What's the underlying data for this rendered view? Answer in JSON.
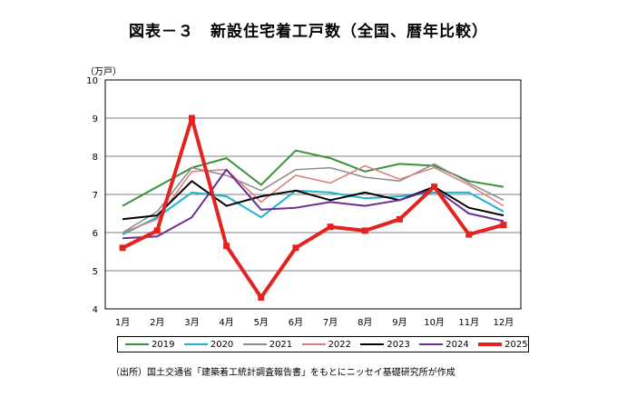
{
  "chart_data": {
    "type": "line",
    "title": "図表－３　新設住宅着工戸数（全国、暦年比較）",
    "ylabel": "（万戸）",
    "xlabel": "",
    "ylim": [
      4,
      10
    ],
    "yticks": [
      4,
      5,
      6,
      7,
      8,
      9,
      10
    ],
    "categories": [
      "1月",
      "2月",
      "3月",
      "4月",
      "5月",
      "6月",
      "7月",
      "8月",
      "9月",
      "10月",
      "11月",
      "12月"
    ],
    "series": [
      {
        "name": "2019",
        "color": "#3a923a",
        "width": 2,
        "values": [
          6.7,
          7.2,
          7.7,
          7.95,
          7.25,
          8.15,
          7.95,
          7.6,
          7.8,
          7.75,
          7.35,
          7.2
        ]
      },
      {
        "name": "2020",
        "color": "#1fb3cf",
        "width": 2,
        "values": [
          5.95,
          6.4,
          7.05,
          6.95,
          6.4,
          7.1,
          7.05,
          6.9,
          6.95,
          7.05,
          7.05,
          6.55
        ]
      },
      {
        "name": "2021",
        "color": "#8c8c8c",
        "width": 1.5,
        "values": [
          6.0,
          6.55,
          7.7,
          7.5,
          7.1,
          7.65,
          7.7,
          7.45,
          7.35,
          7.8,
          7.3,
          6.85
        ]
      },
      {
        "name": "2022",
        "color": "#e07b7b",
        "width": 1.5,
        "values": [
          6.0,
          6.35,
          7.6,
          7.65,
          6.8,
          7.5,
          7.3,
          7.75,
          7.4,
          7.7,
          7.25,
          6.7
        ]
      },
      {
        "name": "2023",
        "color": "#000000",
        "width": 2,
        "values": [
          6.35,
          6.45,
          7.35,
          6.7,
          6.95,
          7.1,
          6.85,
          7.05,
          6.85,
          7.2,
          6.65,
          6.45
        ]
      },
      {
        "name": "2024",
        "color": "#6a2f93",
        "width": 2,
        "values": [
          5.85,
          5.9,
          6.4,
          7.65,
          6.6,
          6.65,
          6.8,
          6.7,
          6.85,
          7.15,
          6.5,
          6.3
        ]
      },
      {
        "name": "2025",
        "color": "#e3231f",
        "width": 4,
        "marker": true,
        "values": [
          5.6,
          6.05,
          9.0,
          5.65,
          4.3,
          5.6,
          6.15,
          6.05,
          6.35,
          7.2,
          5.95,
          6.2
        ]
      }
    ],
    "grid": true,
    "legend": "bottom"
  },
  "source_note": "（出所）国土交通省「建築着工統計調査報告書」をもとにニッセイ基礎研究所が作成"
}
